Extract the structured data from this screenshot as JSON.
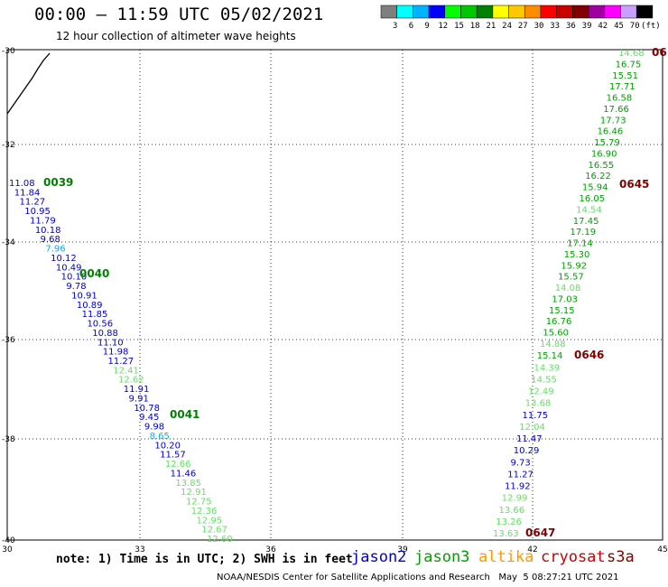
{
  "header": {
    "title": "00:00 – 11:59 UTC 05/02/2021",
    "subtitle": "12 hour collection of altimeter wave heights"
  },
  "colorbar": {
    "labels": [
      "3",
      "6",
      "9",
      "12",
      "15",
      "18",
      "21",
      "24",
      "27",
      "30",
      "33",
      "36",
      "39",
      "42",
      "45",
      "70",
      "(ft)"
    ],
    "colors": [
      "#7f7f7f",
      "#00ffff",
      "#00b2ff",
      "#0000ff",
      "#00ff00",
      "#00c800",
      "#008000",
      "#ffff00",
      "#ffc800",
      "#ff8c00",
      "#ff0000",
      "#c80000",
      "#800000",
      "#a000a0",
      "#ff00ff",
      "#c8a0ff",
      "#000000"
    ]
  },
  "map": {
    "lon_labels": [
      "30",
      "33",
      "36",
      "39",
      "42",
      "45"
    ],
    "lat_labels": [
      "-30",
      "-32",
      "-34",
      "-36",
      "-38",
      "-40"
    ],
    "colors": {
      "jason2": "#0000cc",
      "jason3": "#00a000",
      "altika": "#ff9900",
      "cryosat": "#cc0000",
      "s3a": "#800000",
      "light_green": "#66e066",
      "cyan": "#00b0ff",
      "coast": "#000000"
    },
    "pass_labels": [
      {
        "text": "0039",
        "color": "#008000"
      },
      {
        "text": "0040",
        "color": "#008000"
      },
      {
        "text": "0041",
        "color": "#008000"
      },
      {
        "text": "0645",
        "color": "#800000"
      },
      {
        "text": "0646",
        "color": "#800000"
      },
      {
        "text": "0647",
        "color": "#800000"
      },
      {
        "text": "06",
        "color": "#800000"
      }
    ],
    "track_left": [
      {
        "v": "11.08",
        "c": "#0000cc"
      },
      {
        "v": "11.84",
        "c": "#0000cc"
      },
      {
        "v": "11.27",
        "c": "#0000cc"
      },
      {
        "v": "10.95",
        "c": "#0000cc"
      },
      {
        "v": "11.79",
        "c": "#0000cc"
      },
      {
        "v": "10.18",
        "c": "#0000cc"
      },
      {
        "v": "9.68",
        "c": "#0000cc"
      },
      {
        "v": "7.96",
        "c": "#00b0ff"
      },
      {
        "v": "10.12",
        "c": "#0000cc"
      },
      {
        "v": "10.49",
        "c": "#0000cc"
      },
      {
        "v": "10.10",
        "c": "#0000cc"
      },
      {
        "v": "9.78",
        "c": "#0000cc"
      },
      {
        "v": "10.91",
        "c": "#0000cc"
      },
      {
        "v": "10.89",
        "c": "#0000cc"
      },
      {
        "v": "11.85",
        "c": "#0000cc"
      },
      {
        "v": "10.56",
        "c": "#0000cc"
      },
      {
        "v": "10.88",
        "c": "#0000cc"
      },
      {
        "v": "11.10",
        "c": "#0000cc"
      },
      {
        "v": "11.98",
        "c": "#0000cc"
      },
      {
        "v": "11.27",
        "c": "#0000cc"
      },
      {
        "v": "12.41",
        "c": "#66e066"
      },
      {
        "v": "12.62",
        "c": "#66e066"
      },
      {
        "v": "11.91",
        "c": "#0000cc"
      },
      {
        "v": "9.91",
        "c": "#0000cc"
      },
      {
        "v": "10.78",
        "c": "#0000cc"
      },
      {
        "v": "9.45",
        "c": "#0000cc"
      },
      {
        "v": "9.98",
        "c": "#0000cc"
      },
      {
        "v": "8.65",
        "c": "#00b0ff"
      },
      {
        "v": "10.20",
        "c": "#0000cc"
      },
      {
        "v": "11.57",
        "c": "#0000cc"
      },
      {
        "v": "12.66",
        "c": "#66e066"
      },
      {
        "v": "11.46",
        "c": "#0000cc"
      },
      {
        "v": "13.85",
        "c": "#66e066"
      },
      {
        "v": "12.91",
        "c": "#66e066"
      },
      {
        "v": "12.75",
        "c": "#66e066"
      },
      {
        "v": "12.36",
        "c": "#66e066"
      },
      {
        "v": "12.95",
        "c": "#66e066"
      },
      {
        "v": "12.67",
        "c": "#66e066"
      },
      {
        "v": "12.60",
        "c": "#66e066"
      }
    ],
    "track_right": [
      {
        "v": "14.68",
        "c": "#66e066"
      },
      {
        "v": "16.75",
        "c": "#00a000"
      },
      {
        "v": "15.51",
        "c": "#00a000"
      },
      {
        "v": "17.71",
        "c": "#00a000"
      },
      {
        "v": "16.58",
        "c": "#00a000"
      },
      {
        "v": "17.66",
        "c": "#00a000"
      },
      {
        "v": "17.73",
        "c": "#00a000"
      },
      {
        "v": "16.46",
        "c": "#00a000"
      },
      {
        "v": "15.79",
        "c": "#00a000"
      },
      {
        "v": "16.90",
        "c": "#00a000"
      },
      {
        "v": "16.55",
        "c": "#00a000"
      },
      {
        "v": "16.22",
        "c": "#00a000"
      },
      {
        "v": "15.94",
        "c": "#00a000"
      },
      {
        "v": "16.05",
        "c": "#00a000"
      },
      {
        "v": "14.54",
        "c": "#66e066"
      },
      {
        "v": "17.45",
        "c": "#00a000"
      },
      {
        "v": "17.19",
        "c": "#00a000"
      },
      {
        "v": "17.14",
        "c": "#00a000"
      },
      {
        "v": "15.30",
        "c": "#00a000"
      },
      {
        "v": "15.92",
        "c": "#00a000"
      },
      {
        "v": "15.57",
        "c": "#00a000"
      },
      {
        "v": "14.08",
        "c": "#66e066"
      },
      {
        "v": "17.03",
        "c": "#00a000"
      },
      {
        "v": "15.15",
        "c": "#00a000"
      },
      {
        "v": "16.76",
        "c": "#00a000"
      },
      {
        "v": "15.60",
        "c": "#00a000"
      },
      {
        "v": "14.88",
        "c": "#66e066"
      },
      {
        "v": "15.14",
        "c": "#00a000"
      },
      {
        "v": "14.39",
        "c": "#66e066"
      },
      {
        "v": "14.55",
        "c": "#66e066"
      },
      {
        "v": "12.49",
        "c": "#66e066"
      },
      {
        "v": "13.68",
        "c": "#66e066"
      },
      {
        "v": "11.75",
        "c": "#0000cc"
      },
      {
        "v": "12.04",
        "c": "#66e066"
      },
      {
        "v": "11.47",
        "c": "#0000cc"
      },
      {
        "v": "10.29",
        "c": "#0000cc"
      },
      {
        "v": "9.73",
        "c": "#0000cc"
      },
      {
        "v": "11.27",
        "c": "#0000cc"
      },
      {
        "v": "11.92",
        "c": "#0000cc"
      },
      {
        "v": "12.99",
        "c": "#66e066"
      },
      {
        "v": "13.66",
        "c": "#66e066"
      },
      {
        "v": "13.26",
        "c": "#66e066"
      },
      {
        "v": "13.63",
        "c": "#66e066"
      }
    ]
  },
  "footer": {
    "note": "note: 1) Time is in UTC; 2) SWH is in feet",
    "satellites": {
      "jason2": "jason2",
      "jason3": "jason3",
      "altika": "altika",
      "cryosat": "cryosat",
      "s3a": "s3a"
    },
    "credit": "NOAA/NESDIS Center for Satellite Applications and Research   May  5 08:27:21 UTC 2021"
  }
}
